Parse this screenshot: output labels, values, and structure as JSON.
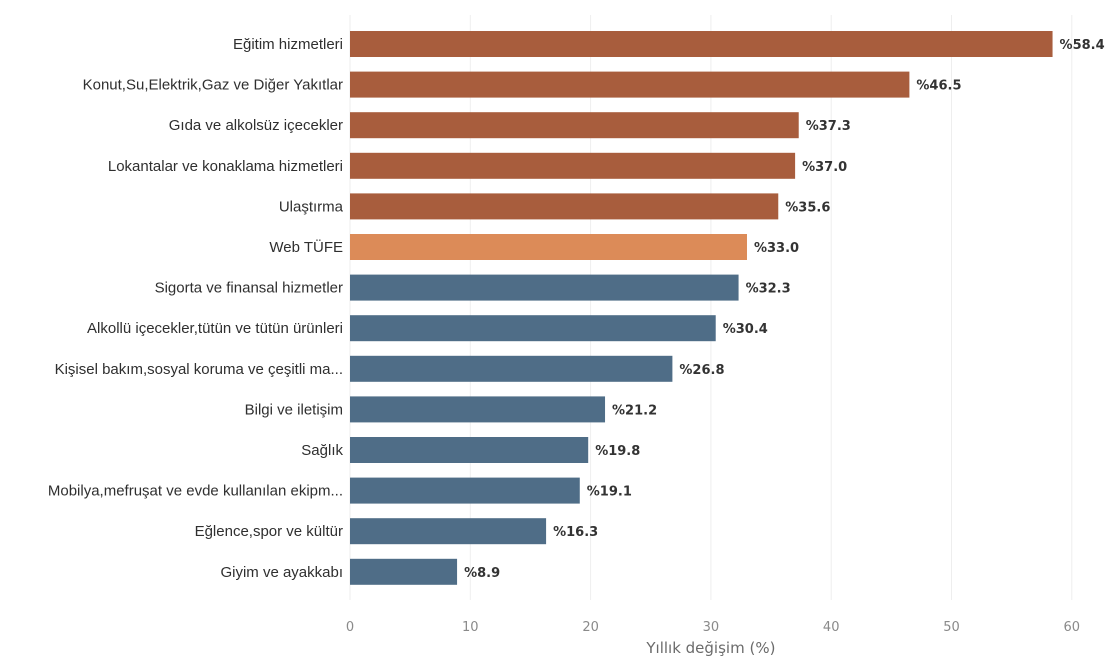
{
  "chart_data": {
    "type": "bar",
    "orientation": "horizontal",
    "categories": [
      "Eğitim hizmetleri",
      "Konut,Su,Elektrik,Gaz ve Diğer Yakıtlar",
      "Gıda ve alkolsüz içecekler",
      "Lokantalar ve konaklama hizmetleri",
      "Ulaştırma",
      "Web TÜFE",
      "Sigorta ve finansal hizmetler",
      "Alkollü içecekler,tütün ve tütün ürünleri",
      "Kişisel bakım,sosyal koruma ve çeşitli ma...",
      "Bilgi ve iletişim",
      "Sağlık",
      "Mobilya,mefruşat ve evde kullanılan ekipm...",
      "Eğlence,spor ve kültür",
      "Giyim ve ayakkabı"
    ],
    "values": [
      58.4,
      46.5,
      37.3,
      37.0,
      35.6,
      33.0,
      32.3,
      30.4,
      26.8,
      21.2,
      19.8,
      19.1,
      16.3,
      8.9
    ],
    "value_labels": [
      "%58.4",
      "%46.5",
      "%37.3",
      "%37.0",
      "%35.6",
      "%33.0",
      "%32.3",
      "%30.4",
      "%26.8",
      "%21.2",
      "%19.8",
      "%19.1",
      "%16.3",
      "%8.9"
    ],
    "highlight_category": "Web TÜFE",
    "title": "",
    "xlabel": "Yıllık değişim (%)",
    "ylabel": "",
    "xlim": [
      0,
      60
    ],
    "x_ticks": [
      0,
      10,
      20,
      30,
      40,
      50,
      60
    ],
    "grid": "vertical",
    "legend": "none",
    "colors": {
      "above": "#a85d3d",
      "highlight": "#dc8b58",
      "highlight_label": "#d07a48",
      "below": "#4f6d87",
      "grid": "#eeeeee",
      "tick_text": "#8a8a8a",
      "label_text": "#2f2f2f"
    }
  }
}
